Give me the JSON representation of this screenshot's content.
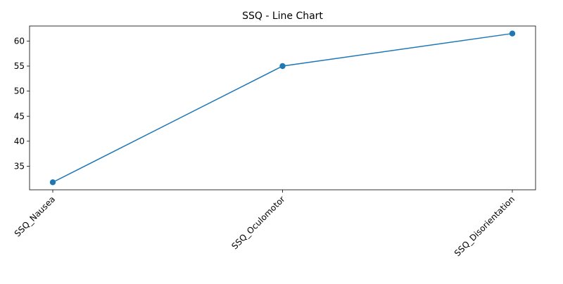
{
  "chart_data": {
    "type": "line",
    "title": "SSQ - Line Chart",
    "xlabel": "",
    "ylabel": "",
    "categories": [
      "SSQ_Nausea",
      "SSQ_Oculomotor",
      "SSQ_Disorientation"
    ],
    "series": [
      {
        "values": [
          31.8,
          55.0,
          61.5
        ],
        "color": "#1f77b4",
        "marker": "circle"
      }
    ],
    "ylim": [
      30.3,
      63.0
    ],
    "yticks": [
      35,
      40,
      45,
      50,
      55,
      60
    ],
    "grid": false,
    "legend": "none"
  }
}
